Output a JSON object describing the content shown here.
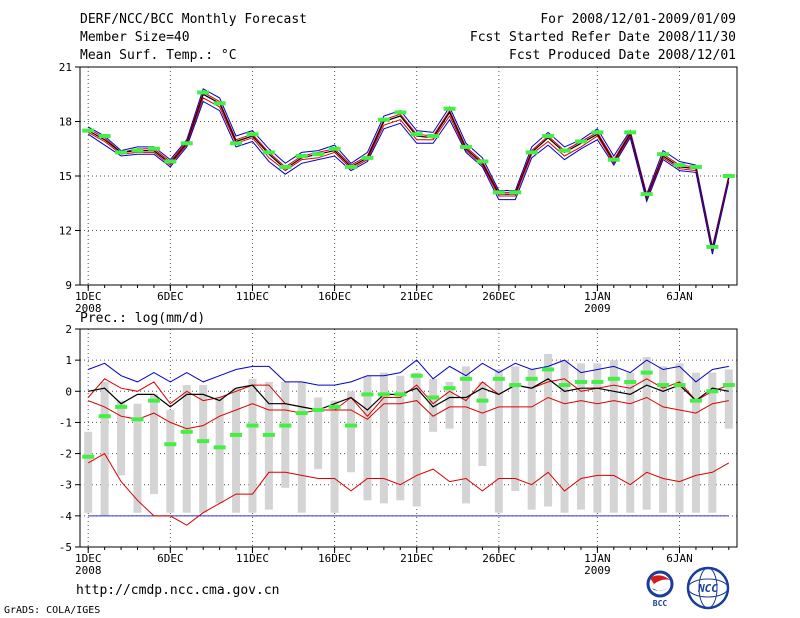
{
  "header": {
    "title": "DERF/NCC/BCC Monthly Forecast",
    "member_size": "Member Size=40",
    "variable": "Mean Surf. Temp.: °C",
    "forecast_period": "For 2008/12/01-2009/01/09",
    "start_date": "Fcst Started Refer Date 2008/11/30",
    "produced_date": "Fcst Produced Date 2008/12/01"
  },
  "footer": {
    "url": "http://cmdp.ncc.cma.gov.cn",
    "grads_credit": "GrADS: COLA/IGES",
    "logo_bcc": "BCC",
    "logo_ncc": "NCC"
  },
  "chart_data": [
    {
      "type": "line",
      "title": "Mean Surf. Temp.: °C",
      "x_tick_labels": [
        "1DEC",
        "6DEC",
        "11DEC",
        "16DEC",
        "21DEC",
        "26DEC",
        "1JAN",
        "6JAN"
      ],
      "x_tick_days": [
        1,
        6,
        11,
        16,
        21,
        26,
        32,
        37
      ],
      "x_year_labels": [
        {
          "day": 1,
          "label": "2008"
        },
        {
          "day": 32,
          "label": "2009"
        }
      ],
      "y_ticks": [
        9,
        12,
        15,
        18,
        21
      ],
      "ylim": [
        9,
        21
      ],
      "xlim": [
        0.5,
        40.5
      ],
      "grid": true,
      "days": [
        1,
        2,
        3,
        4,
        5,
        6,
        7,
        8,
        9,
        10,
        11,
        12,
        13,
        14,
        15,
        16,
        17,
        18,
        19,
        20,
        21,
        22,
        23,
        24,
        25,
        26,
        27,
        28,
        29,
        30,
        31,
        32,
        33,
        34,
        35,
        36,
        37,
        38,
        39,
        40
      ],
      "series": [
        {
          "name": "max",
          "color": "#0000cc",
          "values": [
            17.7,
            17.2,
            16.4,
            16.6,
            16.6,
            15.9,
            17.0,
            19.8,
            19.3,
            17.2,
            17.5,
            16.5,
            15.7,
            16.3,
            16.4,
            16.7,
            15.7,
            16.3,
            18.3,
            18.6,
            17.5,
            17.4,
            18.8,
            16.8,
            16.0,
            14.2,
            14.2,
            16.6,
            17.4,
            16.6,
            17.0,
            17.6,
            16.1,
            17.5,
            14.0,
            16.4,
            15.8,
            15.6,
            11.1,
            15.0
          ]
        },
        {
          "name": "upper",
          "color": "#dd0000",
          "values": [
            17.6,
            17.1,
            16.3,
            16.5,
            16.5,
            15.8,
            16.9,
            19.6,
            19.1,
            17.0,
            17.3,
            16.3,
            15.5,
            16.1,
            16.3,
            16.5,
            15.6,
            16.1,
            18.1,
            18.4,
            17.3,
            17.2,
            18.6,
            16.6,
            15.8,
            14.1,
            14.1,
            16.4,
            17.2,
            16.4,
            16.9,
            17.4,
            15.9,
            17.4,
            13.9,
            16.2,
            15.6,
            15.5,
            11.0,
            15.0
          ]
        },
        {
          "name": "mean",
          "color": "#000000",
          "values": [
            17.5,
            17.0,
            16.3,
            16.4,
            16.4,
            15.7,
            16.8,
            19.5,
            19.0,
            16.9,
            17.2,
            16.2,
            15.4,
            16.0,
            16.2,
            16.4,
            15.5,
            16.0,
            18.0,
            18.3,
            17.2,
            17.1,
            18.5,
            16.5,
            15.7,
            14.0,
            14.0,
            16.3,
            17.1,
            16.3,
            16.8,
            17.3,
            15.8,
            17.3,
            13.8,
            16.1,
            15.5,
            15.4,
            10.9,
            14.9
          ]
        },
        {
          "name": "lower",
          "color": "#dd0000",
          "values": [
            17.4,
            16.9,
            16.2,
            16.3,
            16.3,
            15.6,
            16.7,
            19.3,
            18.8,
            16.8,
            17.1,
            16.0,
            15.3,
            15.9,
            16.0,
            16.3,
            15.4,
            15.9,
            17.8,
            18.1,
            17.0,
            17.0,
            18.3,
            16.4,
            15.6,
            13.9,
            13.9,
            16.2,
            16.9,
            16.1,
            16.6,
            17.2,
            15.7,
            17.2,
            13.7,
            16.0,
            15.4,
            15.3,
            10.8,
            14.8
          ]
        },
        {
          "name": "min",
          "color": "#0000cc",
          "values": [
            17.3,
            16.7,
            16.1,
            16.2,
            16.2,
            15.5,
            16.6,
            19.1,
            18.6,
            16.6,
            16.9,
            15.8,
            15.1,
            15.7,
            15.9,
            16.1,
            15.3,
            15.8,
            17.6,
            17.9,
            16.8,
            16.8,
            18.1,
            16.3,
            15.5,
            13.7,
            13.7,
            16.0,
            16.7,
            15.9,
            16.5,
            17.0,
            15.6,
            17.1,
            13.6,
            15.9,
            15.3,
            15.2,
            10.7,
            14.7
          ]
        }
      ],
      "marker_values": [
        17.5,
        17.2,
        16.3,
        16.4,
        16.5,
        15.8,
        16.8,
        19.6,
        19.0,
        16.8,
        17.3,
        16.3,
        15.5,
        16.1,
        16.2,
        16.5,
        15.5,
        16.0,
        18.1,
        18.5,
        17.3,
        17.2,
        18.7,
        16.6,
        15.8,
        14.1,
        14.1,
        16.3,
        17.2,
        16.4,
        16.9,
        17.4,
        15.9,
        17.4,
        14.0,
        16.2,
        15.6,
        15.5,
        11.1,
        15.0
      ],
      "marker_color": "#44ee44"
    },
    {
      "type": "line",
      "title": "Prec.: log(mm/d)",
      "x_tick_labels": [
        "1DEC",
        "6DEC",
        "11DEC",
        "16DEC",
        "21DEC",
        "26DEC",
        "1JAN",
        "6JAN"
      ],
      "x_tick_days": [
        1,
        6,
        11,
        16,
        21,
        26,
        32,
        37
      ],
      "x_year_labels": [
        {
          "day": 1,
          "label": "2008"
        },
        {
          "day": 32,
          "label": "2009"
        }
      ],
      "y_ticks": [
        -5,
        -4,
        -3,
        -2,
        -1,
        0,
        1,
        2
      ],
      "ylim": [
        -5,
        2
      ],
      "xlim": [
        0.5,
        40.5
      ],
      "grid": true,
      "days": [
        1,
        2,
        3,
        4,
        5,
        6,
        7,
        8,
        9,
        10,
        11,
        12,
        13,
        14,
        15,
        16,
        17,
        18,
        19,
        20,
        21,
        22,
        23,
        24,
        25,
        26,
        27,
        28,
        29,
        30,
        31,
        32,
        33,
        34,
        35,
        36,
        37,
        38,
        39,
        40
      ],
      "baseline": {
        "value": -4,
        "color": "#3333cc"
      },
      "bars": {
        "color": "#d4d4d4",
        "top": [
          -1.3,
          0.3,
          -0.3,
          -0.4,
          -0.1,
          -0.6,
          0.2,
          0.2,
          -0.2,
          0.1,
          0.4,
          0.3,
          0.3,
          0.3,
          -0.2,
          -0.3,
          0.0,
          0.5,
          0.6,
          0.5,
          0.6,
          0.4,
          0.3,
          0.8,
          0.3,
          0.7,
          0.8,
          0.7,
          1.2,
          1.0,
          0.9,
          0.9,
          1.0,
          0.6,
          1.1,
          0.8,
          0.9,
          0.6,
          0.6,
          0.7
        ],
        "bottom": [
          -3.9,
          -4.0,
          -2.7,
          -3.9,
          -3.3,
          -3.9,
          -3.9,
          -3.9,
          -3.6,
          -3.9,
          -3.9,
          -3.8,
          -3.1,
          -3.9,
          -2.5,
          -3.9,
          -2.6,
          -3.5,
          -3.6,
          -3.5,
          -3.7,
          -1.3,
          -1.2,
          -3.6,
          -2.4,
          -3.9,
          -3.2,
          -3.8,
          -3.7,
          -3.9,
          -3.8,
          -3.9,
          -3.9,
          -3.9,
          -3.8,
          -3.9,
          -3.9,
          -3.9,
          -3.9,
          -1.2
        ]
      },
      "series": [
        {
          "name": "max",
          "color": "#0000cc",
          "values": [
            0.7,
            0.9,
            0.5,
            0.3,
            0.6,
            0.3,
            0.6,
            0.3,
            0.5,
            0.7,
            0.8,
            0.8,
            0.3,
            0.3,
            0.2,
            0.2,
            0.3,
            0.5,
            0.5,
            0.6,
            1.0,
            0.4,
            0.8,
            0.5,
            0.9,
            0.6,
            0.9,
            0.7,
            0.8,
            1.0,
            0.6,
            0.7,
            0.8,
            0.6,
            1.0,
            0.7,
            0.8,
            0.3,
            0.7,
            0.8
          ]
        },
        {
          "name": "upper",
          "color": "#dd0000",
          "values": [
            -0.2,
            0.4,
            0.1,
            0.0,
            0.3,
            -0.4,
            0.0,
            -0.3,
            -0.2,
            0.0,
            0.2,
            0.2,
            -0.4,
            -0.5,
            -0.6,
            -0.6,
            -0.2,
            -0.8,
            -0.2,
            -0.2,
            0.2,
            -0.4,
            0.0,
            -0.3,
            0.3,
            -0.1,
            0.2,
            0.1,
            0.3,
            0.4,
            0.0,
            0.1,
            0.2,
            0.1,
            0.4,
            0.1,
            0.3,
            -0.3,
            0.0,
            0.2
          ]
        },
        {
          "name": "mean",
          "color": "#000000",
          "values": [
            0.0,
            0.1,
            -0.4,
            -0.1,
            -0.1,
            -0.5,
            -0.1,
            -0.1,
            -0.3,
            0.1,
            0.2,
            -0.4,
            -0.4,
            -0.5,
            -0.6,
            -0.4,
            -0.2,
            -0.6,
            -0.1,
            -0.1,
            0.1,
            -0.5,
            -0.2,
            -0.2,
            0.1,
            -0.1,
            0.2,
            0.1,
            0.4,
            0.0,
            0.1,
            0.1,
            0.0,
            -0.1,
            0.2,
            0.0,
            0.2,
            -0.3,
            0.1,
            0.0
          ]
        },
        {
          "name": "lower",
          "color": "#dd0000",
          "values": [
            -0.3,
            -0.5,
            -0.8,
            -0.9,
            -0.7,
            -1.0,
            -1.2,
            -1.1,
            -0.8,
            -0.6,
            -0.4,
            -0.6,
            -0.6,
            -0.7,
            -0.6,
            -0.6,
            -0.6,
            -0.9,
            -0.4,
            -0.4,
            -0.3,
            -0.8,
            -0.5,
            -0.5,
            -0.7,
            -0.5,
            -0.5,
            -0.5,
            -0.2,
            -0.4,
            -0.3,
            -0.4,
            -0.3,
            -0.4,
            -0.2,
            -0.5,
            -0.6,
            -0.7,
            -0.4,
            -0.3
          ]
        },
        {
          "name": "min",
          "color": "#dd0000",
          "values": [
            -2.3,
            -2.0,
            -2.9,
            -3.5,
            -4.0,
            -4.0,
            -4.3,
            -3.9,
            -3.6,
            -3.3,
            -3.3,
            -2.6,
            -2.6,
            -2.7,
            -2.8,
            -2.8,
            -3.2,
            -2.8,
            -2.8,
            -3.0,
            -2.7,
            -2.5,
            -2.9,
            -2.8,
            -3.2,
            -2.8,
            -2.8,
            -3.0,
            -2.6,
            -3.2,
            -2.8,
            -2.7,
            -2.7,
            -3.0,
            -2.6,
            -2.8,
            -2.9,
            -2.7,
            -2.6,
            -2.3
          ]
        }
      ],
      "marker_values": [
        -2.1,
        -0.8,
        -0.5,
        -0.9,
        -0.3,
        -1.7,
        -1.3,
        -1.6,
        -1.8,
        -1.4,
        -1.1,
        -1.4,
        -1.1,
        -0.7,
        -0.6,
        -0.5,
        -1.1,
        -0.1,
        -0.1,
        -0.1,
        0.5,
        -0.2,
        0.1,
        0.4,
        -0.3,
        0.4,
        0.2,
        0.4,
        0.7,
        0.2,
        0.3,
        0.3,
        0.4,
        0.3,
        0.6,
        0.2,
        0.2,
        -0.3,
        0.0,
        0.2
      ],
      "marker_color": "#44ee44"
    }
  ]
}
